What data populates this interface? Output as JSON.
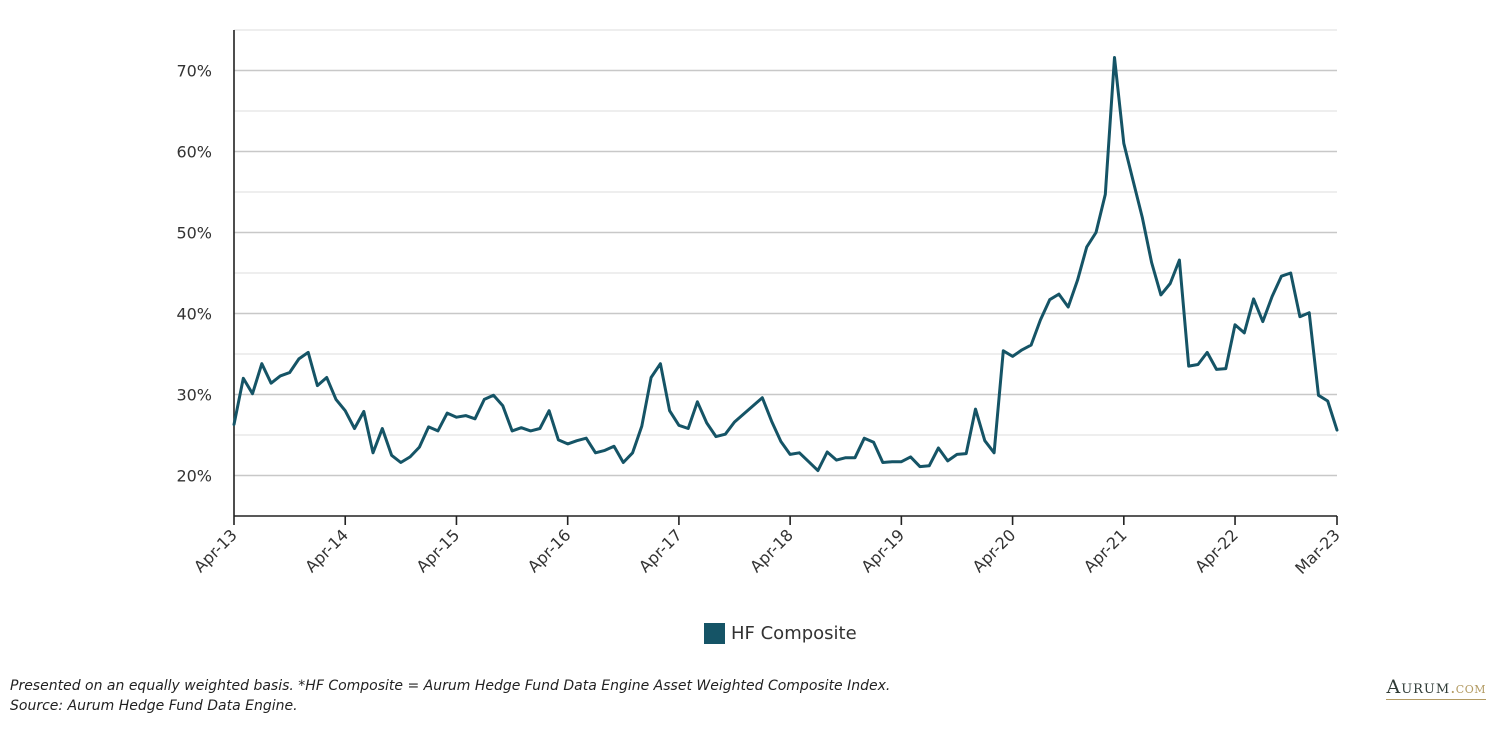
{
  "colors": {
    "series": "#155466",
    "grid": "#d6d6d6",
    "axis": "#222222",
    "brand_gold": "#b39b63"
  },
  "legend": {
    "label": "HF Composite"
  },
  "footnote": {
    "line1": "Presented on an equally weighted basis. *HF Composite = Aurum Hedge Fund Data Engine Asset Weighted Composite Index.",
    "line2": "Source: Aurum Hedge Fund Data Engine."
  },
  "brand": {
    "name": "Aurum",
    "suffix": ".com"
  },
  "chart_data": {
    "type": "line",
    "title": "",
    "xlabel": "",
    "ylabel": "",
    "y_unit": "%",
    "ylim": [
      15,
      75
    ],
    "y_ticks": [
      20,
      30,
      40,
      50,
      60,
      70
    ],
    "y_tick_labels": [
      "20%",
      "30%",
      "40%",
      "50%",
      "60%",
      "70%"
    ],
    "grid": true,
    "legend_position": "bottom-center",
    "x_tick_labels": [
      "Apr-13",
      "Apr-14",
      "Apr-15",
      "Apr-16",
      "Apr-17",
      "Apr-18",
      "Apr-19",
      "Apr-20",
      "Apr-21",
      "Apr-22",
      "Mar-23"
    ],
    "x_tick_dates": [
      "2013-04",
      "2014-04",
      "2015-04",
      "2016-04",
      "2017-04",
      "2018-04",
      "2019-04",
      "2020-04",
      "2021-04",
      "2022-04",
      "2023-03"
    ],
    "series": [
      {
        "name": "HF Composite",
        "points": [
          [
            "2013-04",
            26.3
          ],
          [
            "2013-05",
            32.0
          ],
          [
            "2013-06",
            30.1
          ],
          [
            "2013-07",
            33.8
          ],
          [
            "2013-08",
            31.4
          ],
          [
            "2013-09",
            32.3
          ],
          [
            "2013-10",
            32.7
          ],
          [
            "2013-11",
            34.4
          ],
          [
            "2013-12",
            35.2
          ],
          [
            "2014-01",
            31.1
          ],
          [
            "2014-02",
            32.1
          ],
          [
            "2014-03",
            29.4
          ],
          [
            "2014-04",
            28.0
          ],
          [
            "2014-05",
            25.8
          ],
          [
            "2014-06",
            27.9
          ],
          [
            "2014-07",
            22.8
          ],
          [
            "2014-08",
            25.8
          ],
          [
            "2014-09",
            22.5
          ],
          [
            "2014-10",
            21.6
          ],
          [
            "2014-11",
            22.3
          ],
          [
            "2014-12",
            23.5
          ],
          [
            "2015-01",
            26.0
          ],
          [
            "2015-02",
            25.5
          ],
          [
            "2015-03",
            27.7
          ],
          [
            "2015-04",
            27.2
          ],
          [
            "2015-05",
            27.4
          ],
          [
            "2015-06",
            27.0
          ],
          [
            "2015-07",
            29.4
          ],
          [
            "2015-08",
            29.9
          ],
          [
            "2015-09",
            28.6
          ],
          [
            "2015-10",
            25.5
          ],
          [
            "2015-11",
            25.9
          ],
          [
            "2015-12",
            25.5
          ],
          [
            "2016-01",
            25.8
          ],
          [
            "2016-02",
            28.0
          ],
          [
            "2016-03",
            24.4
          ],
          [
            "2016-04",
            23.9
          ],
          [
            "2016-05",
            24.3
          ],
          [
            "2016-06",
            24.6
          ],
          [
            "2016-07",
            22.8
          ],
          [
            "2016-08",
            23.1
          ],
          [
            "2016-09",
            23.6
          ],
          [
            "2016-10",
            21.6
          ],
          [
            "2016-11",
            22.8
          ],
          [
            "2016-12",
            26.1
          ],
          [
            "2017-01",
            32.1
          ],
          [
            "2017-02",
            33.8
          ],
          [
            "2017-03",
            28.0
          ],
          [
            "2017-04",
            26.2
          ],
          [
            "2017-05",
            25.8
          ],
          [
            "2017-06",
            29.1
          ],
          [
            "2017-07",
            26.5
          ],
          [
            "2017-08",
            24.8
          ],
          [
            "2017-09",
            25.1
          ],
          [
            "2017-10",
            26.6
          ],
          [
            "2017-11",
            27.6
          ],
          [
            "2017-12",
            28.6
          ],
          [
            "2018-01",
            29.6
          ],
          [
            "2018-02",
            26.7
          ],
          [
            "2018-03",
            24.2
          ],
          [
            "2018-04",
            22.6
          ],
          [
            "2018-05",
            22.8
          ],
          [
            "2018-06",
            21.7
          ],
          [
            "2018-07",
            20.6
          ],
          [
            "2018-08",
            22.9
          ],
          [
            "2018-09",
            21.9
          ],
          [
            "2018-10",
            22.2
          ],
          [
            "2018-11",
            22.2
          ],
          [
            "2018-12",
            24.6
          ],
          [
            "2019-01",
            24.1
          ],
          [
            "2019-02",
            21.6
          ],
          [
            "2019-03",
            21.7
          ],
          [
            "2019-04",
            21.7
          ],
          [
            "2019-05",
            22.3
          ],
          [
            "2019-06",
            21.1
          ],
          [
            "2019-07",
            21.2
          ],
          [
            "2019-08",
            23.4
          ],
          [
            "2019-09",
            21.8
          ],
          [
            "2019-10",
            22.6
          ],
          [
            "2019-11",
            22.7
          ],
          [
            "2019-12",
            28.2
          ],
          [
            "2020-01",
            24.3
          ],
          [
            "2020-02",
            22.8
          ],
          [
            "2020-03",
            35.4
          ],
          [
            "2020-04",
            34.7
          ],
          [
            "2020-05",
            35.5
          ],
          [
            "2020-06",
            36.1
          ],
          [
            "2020-07",
            39.2
          ],
          [
            "2020-08",
            41.7
          ],
          [
            "2020-09",
            42.4
          ],
          [
            "2020-10",
            40.8
          ],
          [
            "2020-11",
            44.1
          ],
          [
            "2020-12",
            48.2
          ],
          [
            "2021-01",
            50.0
          ],
          [
            "2021-02",
            54.7
          ],
          [
            "2021-03",
            71.6
          ],
          [
            "2021-04",
            61.0
          ],
          [
            "2021-05",
            56.4
          ],
          [
            "2021-06",
            51.8
          ],
          [
            "2021-07",
            46.3
          ],
          [
            "2021-08",
            42.3
          ],
          [
            "2021-09",
            43.7
          ],
          [
            "2021-10",
            46.6
          ],
          [
            "2021-11",
            33.5
          ],
          [
            "2021-12",
            33.7
          ],
          [
            "2022-01",
            35.2
          ],
          [
            "2022-02",
            33.1
          ],
          [
            "2022-03",
            33.2
          ],
          [
            "2022-04",
            38.6
          ],
          [
            "2022-05",
            37.6
          ],
          [
            "2022-06",
            41.8
          ],
          [
            "2022-07",
            39.0
          ],
          [
            "2022-08",
            42.1
          ],
          [
            "2022-09",
            44.6
          ],
          [
            "2022-10",
            45.0
          ],
          [
            "2022-11",
            39.6
          ],
          [
            "2022-12",
            40.1
          ],
          [
            "2023-01",
            29.9
          ],
          [
            "2023-02",
            29.2
          ],
          [
            "2023-03",
            25.6
          ]
        ]
      }
    ]
  }
}
